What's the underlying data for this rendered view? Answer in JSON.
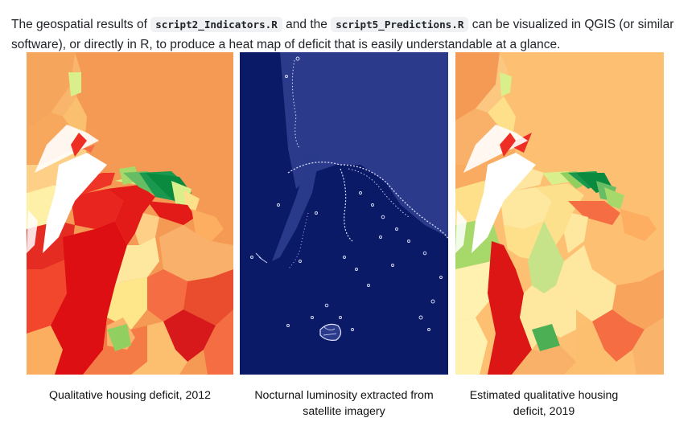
{
  "intro": {
    "t1": "The geospatial results of",
    "code1": "script2_Indicators.R",
    "t2": "and the",
    "code2": "script5_Predictions.R",
    "t3": "can be visualized in QGIS (or similar software), or directly in R, to produce a heat map of deficit that is easily understandable at a glance."
  },
  "figures": [
    {
      "caption": "Qualitative housing deficit, 2012"
    },
    {
      "caption": "Nocturnal luminosity extracted from satellite imagery"
    },
    {
      "caption": "Estimated qualitative housing deficit, 2019"
    }
  ]
}
